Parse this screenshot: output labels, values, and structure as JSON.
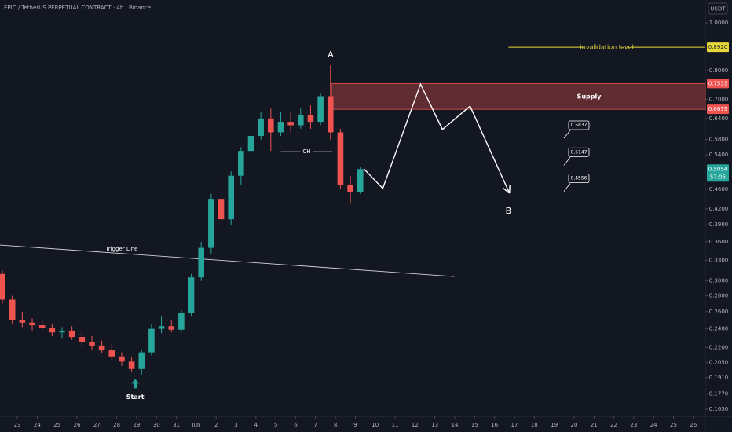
{
  "header": {
    "symbol": "EPIC / TetherUS PERPETUAL CONTRACT · 4h · Binance",
    "currency": "USDT"
  },
  "chart_data": {
    "type": "candlestick",
    "log_scale": true,
    "grid": false,
    "up_color": "#26a69a",
    "down_color": "#ef5350",
    "x": [
      -0.75,
      -0.25,
      0.25,
      0.75,
      1.25,
      1.75,
      2.25,
      2.75,
      3.25,
      3.75,
      4.25,
      4.75,
      5.25,
      5.75,
      6.25,
      6.75,
      7.25,
      7.75,
      8.25,
      8.75,
      9.25,
      9.75,
      10.25,
      10.75,
      11.25,
      11.75,
      12.25,
      12.75,
      13.25,
      13.75,
      14.25,
      14.75,
      15.25,
      15.75,
      16.25,
      16.75,
      17.25
    ],
    "open": [
      0.31,
      0.275,
      0.25,
      0.247,
      0.244,
      0.241,
      0.236,
      0.238,
      0.231,
      0.226,
      0.222,
      0.217,
      0.211,
      0.206,
      0.199,
      0.215,
      0.24,
      0.243,
      0.239,
      0.258,
      0.305,
      0.35,
      0.44,
      0.4,
      0.49,
      0.55,
      0.59,
      0.64,
      0.6,
      0.63,
      0.62,
      0.65,
      0.63,
      0.71,
      0.6,
      0.47,
      0.455
    ],
    "high": [
      0.315,
      0.28,
      0.26,
      0.252,
      0.25,
      0.246,
      0.242,
      0.243,
      0.236,
      0.232,
      0.227,
      0.224,
      0.215,
      0.21,
      0.218,
      0.245,
      0.255,
      0.25,
      0.262,
      0.31,
      0.36,
      0.45,
      0.48,
      0.5,
      0.56,
      0.61,
      0.66,
      0.67,
      0.66,
      0.66,
      0.67,
      0.68,
      0.72,
      0.82,
      0.61,
      0.49,
      0.51
    ],
    "low": [
      0.27,
      0.245,
      0.242,
      0.238,
      0.238,
      0.232,
      0.23,
      0.228,
      0.222,
      0.218,
      0.214,
      0.208,
      0.202,
      0.196,
      0.194,
      0.212,
      0.235,
      0.236,
      0.236,
      0.255,
      0.3,
      0.34,
      0.38,
      0.39,
      0.47,
      0.53,
      0.58,
      0.55,
      0.59,
      0.6,
      0.61,
      0.61,
      0.62,
      0.58,
      0.46,
      0.43,
      0.45
    ],
    "close": [
      0.275,
      0.25,
      0.247,
      0.244,
      0.241,
      0.236,
      0.238,
      0.231,
      0.226,
      0.222,
      0.217,
      0.211,
      0.206,
      0.199,
      0.215,
      0.24,
      0.243,
      0.239,
      0.258,
      0.305,
      0.35,
      0.44,
      0.4,
      0.49,
      0.55,
      0.59,
      0.64,
      0.6,
      0.63,
      0.62,
      0.65,
      0.63,
      0.71,
      0.6,
      0.47,
      0.455,
      0.5054
    ],
    "xlim": [
      -0.87,
      34.6
    ],
    "xticks": [
      {
        "value": 0,
        "label": "23"
      },
      {
        "value": 1,
        "label": "24"
      },
      {
        "value": 2,
        "label": "25"
      },
      {
        "value": 3,
        "label": "26"
      },
      {
        "value": 4,
        "label": "27"
      },
      {
        "value": 5,
        "label": "28"
      },
      {
        "value": 6,
        "label": "29"
      },
      {
        "value": 7,
        "label": "30"
      },
      {
        "value": 8,
        "label": "31"
      },
      {
        "value": 9,
        "label": "Jun"
      },
      {
        "value": 10,
        "label": "2"
      },
      {
        "value": 11,
        "label": "3"
      },
      {
        "value": 12,
        "label": "4"
      },
      {
        "value": 13,
        "label": "5"
      },
      {
        "value": 14,
        "label": "6"
      },
      {
        "value": 15,
        "label": "7"
      },
      {
        "value": 16,
        "label": "8"
      },
      {
        "value": 17,
        "label": "9"
      },
      {
        "value": 18,
        "label": "10"
      },
      {
        "value": 19,
        "label": "11"
      },
      {
        "value": 20,
        "label": "12"
      },
      {
        "value": 21,
        "label": "13"
      },
      {
        "value": 22,
        "label": "14"
      },
      {
        "value": 23,
        "label": "15"
      },
      {
        "value": 24,
        "label": "16"
      },
      {
        "value": 25,
        "label": "17"
      },
      {
        "value": 26,
        "label": "18"
      },
      {
        "value": 27,
        "label": "19"
      },
      {
        "value": 28,
        "label": "20"
      },
      {
        "value": 29,
        "label": "21"
      },
      {
        "value": 30,
        "label": "22"
      },
      {
        "value": 31,
        "label": "23"
      },
      {
        "value": 32,
        "label": "24"
      },
      {
        "value": 33,
        "label": "25"
      },
      {
        "value": 34,
        "label": "26"
      }
    ],
    "ylim": [
      0.1596,
      1.112
    ],
    "yticks": [
      {
        "value": 1,
        "label": "1.0000"
      },
      {
        "value": 0.8,
        "label": "0.8000"
      },
      {
        "value": 0.7,
        "label": "0.7000"
      },
      {
        "value": 0.64,
        "label": "0.6400"
      },
      {
        "value": 0.58,
        "label": "0.5800"
      },
      {
        "value": 0.54,
        "label": "0.5400"
      },
      {
        "value": 0.46,
        "label": "0.4600"
      },
      {
        "value": 0.42,
        "label": "0.4200"
      },
      {
        "value": 0.39,
        "label": "0.3900"
      },
      {
        "value": 0.36,
        "label": "0.3600"
      },
      {
        "value": 0.33,
        "label": "0.3300"
      },
      {
        "value": 0.3,
        "label": "0.3000"
      },
      {
        "value": 0.28,
        "label": "0.2800"
      },
      {
        "value": 0.26,
        "label": "0.2600"
      },
      {
        "value": 0.24,
        "label": "0.2400"
      },
      {
        "value": 0.22,
        "label": "0.2200"
      },
      {
        "value": 0.205,
        "label": "0.2050"
      },
      {
        "value": 0.191,
        "label": "0.1910"
      },
      {
        "value": 0.177,
        "label": "0.1770"
      },
      {
        "value": 0.165,
        "label": "0.1650"
      }
    ],
    "last_price": {
      "value": 0.5054,
      "label": "0.5054",
      "countdown": "57:05",
      "color": "#26a69a"
    },
    "level": {
      "name": "invalidation level",
      "value": 0.892,
      "label": "0.8920",
      "x_start": 24.7,
      "color": "#e6d83a"
    },
    "zone": {
      "name": "Supply",
      "low": 0.6679,
      "high": 0.7533,
      "low_label": "0.6679",
      "high_label": "0.7533",
      "x_start": 15.8,
      "color": "#ef5350"
    },
    "trigger_line": {
      "name": "Trigger Line",
      "x": [
        -0.87,
        21.98
      ],
      "y": [
        0.3546,
        0.3063
      ]
    },
    "ch_line": {
      "name": "CH",
      "x": [
        13.25,
        15.85
      ],
      "value": 0.548
    },
    "projection": {
      "x": [
        17.43,
        18.38,
        20.28,
        21.38,
        22.77,
        24.74
      ],
      "y": [
        0.506,
        0.462,
        0.751,
        0.608,
        0.678,
        0.453
      ]
    },
    "points": [
      {
        "label": "A",
        "x": 15.76,
        "value": 0.86
      },
      {
        "label": "B",
        "x": 24.7,
        "value": 0.415
      }
    ],
    "start": {
      "label": "Start",
      "x": 5.93,
      "value": 0.19
    },
    "price_labels": [
      {
        "label": "0.5837",
        "value": 0.5837,
        "x": 28.2
      },
      {
        "label": "0.5147",
        "value": 0.5147,
        "x": 28.2
      },
      {
        "label": "0.4556",
        "value": 0.4556,
        "x": 28.2
      }
    ]
  }
}
